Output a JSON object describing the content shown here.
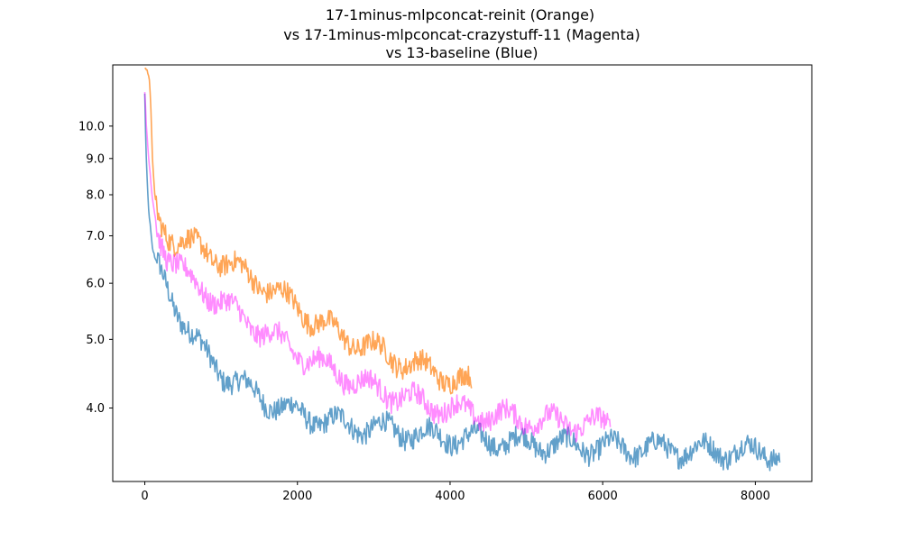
{
  "chart_data": {
    "type": "line",
    "title": [
      "17-1minus-mlpconcat-reinit (Orange)",
      "vs 17-1minus-mlpconcat-crazystuff-11 (Magenta)",
      "vs 13-baseline (Blue)"
    ],
    "xlabel": "",
    "ylabel": "",
    "xlim": [
      -420,
      8740
    ],
    "ylim": [
      3.15,
      12.2
    ],
    "y_scale": "log",
    "grid": false,
    "legend": "none",
    "x_ticks": [
      0,
      2000,
      4000,
      6000,
      8000
    ],
    "x_tick_labels": [
      "0",
      "2000",
      "4000",
      "6000",
      "8000"
    ],
    "y_ticks": [
      4.0,
      5.0,
      6.0,
      7.0,
      8.0,
      9.0,
      10.0
    ],
    "y_tick_labels": [
      "4.0",
      "5.0",
      "6.0",
      "7.0",
      "8.0",
      "9.0",
      "10.0"
    ],
    "series": [
      {
        "color": "#1f77b4",
        "x": [
          0,
          10,
          25,
          50,
          100,
          150,
          200,
          300,
          400,
          500,
          600,
          800,
          1000,
          1200,
          1400,
          1600,
          1800,
          2000,
          2200,
          2400,
          2600,
          2800,
          3000,
          3200,
          3400,
          3600,
          3800,
          4000,
          4200,
          4400,
          4600,
          4800,
          5000,
          5200,
          5400,
          5600,
          5800,
          6000,
          6200,
          6400,
          6600,
          6800,
          7000,
          7200,
          7400,
          7600,
          7800,
          8000,
          8200,
          8320
        ],
        "y": [
          11.1,
          9.8,
          8.6,
          7.6,
          6.7,
          6.4,
          6.2,
          5.9,
          5.6,
          5.35,
          5.1,
          4.75,
          4.5,
          4.35,
          4.22,
          4.1,
          4.0,
          3.93,
          3.88,
          3.83,
          3.8,
          3.77,
          3.75,
          3.73,
          3.7,
          3.68,
          3.66,
          3.64,
          3.62,
          3.61,
          3.6,
          3.58,
          3.57,
          3.56,
          3.55,
          3.54,
          3.53,
          3.52,
          3.52,
          3.51,
          3.51,
          3.5,
          3.5,
          3.49,
          3.49,
          3.48,
          3.48,
          3.47,
          3.47,
          3.46
        ]
      },
      {
        "color": "#ff7f0e",
        "x": [
          0,
          30,
          60,
          80,
          100,
          130,
          160,
          200,
          300,
          400,
          500,
          600,
          800,
          1000,
          1200,
          1400,
          1600,
          1800,
          2000,
          2200,
          2400,
          2600,
          2800,
          3000,
          3200,
          3400,
          3600,
          3800,
          4000,
          4200,
          4280
        ],
        "y": [
          12.0,
          12.0,
          11.6,
          10.5,
          9.0,
          8.0,
          7.5,
          7.3,
          7.1,
          6.95,
          6.9,
          6.8,
          6.65,
          6.5,
          6.3,
          6.1,
          5.95,
          5.75,
          5.55,
          5.35,
          5.2,
          5.05,
          4.95,
          4.85,
          4.75,
          4.65,
          4.57,
          4.5,
          4.42,
          4.35,
          4.3
        ]
      },
      {
        "color": "#ff00ff",
        "x": [
          0,
          20,
          50,
          100,
          150,
          200,
          300,
          400,
          500,
          600,
          800,
          1000,
          1200,
          1400,
          1600,
          1800,
          2000,
          2200,
          2400,
          2600,
          2800,
          3000,
          3200,
          3400,
          3600,
          3800,
          4000,
          4200,
          4400,
          4600,
          4800,
          5000,
          5200,
          5400,
          5600,
          5800,
          6000,
          6100
        ],
        "y": [
          11.1,
          10.0,
          9.0,
          7.9,
          7.3,
          7.0,
          6.6,
          6.4,
          6.2,
          6.05,
          5.85,
          5.65,
          5.45,
          5.25,
          5.1,
          4.95,
          4.8,
          4.67,
          4.55,
          4.45,
          4.35,
          4.27,
          4.2,
          4.14,
          4.08,
          4.03,
          3.99,
          3.95,
          3.92,
          3.9,
          3.88,
          3.86,
          3.84,
          3.82,
          3.81,
          3.8,
          3.79,
          3.78
        ]
      }
    ]
  }
}
